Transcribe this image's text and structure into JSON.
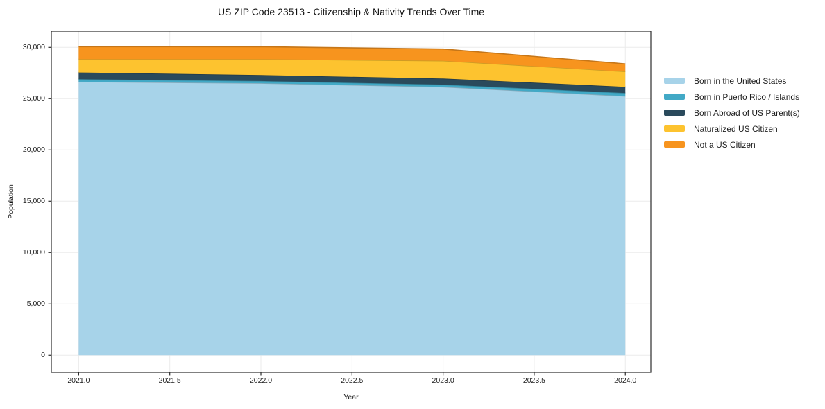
{
  "chart": {
    "title": "US ZIP Code 23513 - Citizenship & Nativity Trends Over Time",
    "xlabel": "Year",
    "ylabel": "Population"
  },
  "style": {
    "background": "#ffffff",
    "grid_color": "#ebebeb",
    "frame_color": "#2b2b2b",
    "tick_color": "#2b2b2b",
    "text_color": "#1c1c1c"
  },
  "chart_data": {
    "type": "area",
    "stacked": true,
    "title": "US ZIP Code 23513 - Citizenship & Nativity Trends Over Time",
    "xlabel": "Year",
    "ylabel": "Population",
    "x": [
      2021,
      2022,
      2023,
      2024
    ],
    "series": [
      {
        "name": "Born in the United States",
        "color": "#a7d3e9",
        "values": [
          26650,
          26500,
          26150,
          25250
        ]
      },
      {
        "name": "Born in Puerto Rico / Islands",
        "color": "#42a9c6",
        "values": [
          250,
          220,
          220,
          300
        ]
      },
      {
        "name": "Born Abroad of US Parent(s)",
        "color": "#2a4a5c",
        "values": [
          650,
          580,
          590,
          600
        ]
      },
      {
        "name": "Naturalized US Citizen",
        "color": "#fdc32f",
        "values": [
          1300,
          1550,
          1730,
          1490
        ]
      },
      {
        "name": "Not a US Citizen",
        "color": "#f7941e",
        "values": [
          1220,
          1210,
          1150,
          750
        ]
      }
    ],
    "stack_totals": [
      30070,
      30060,
      29840,
      28390
    ],
    "x_range": [
      2020.85,
      2024.14
    ],
    "y_range": [
      -1670,
      31575
    ],
    "x_tick_values": [
      2021.0,
      2021.5,
      2022.0,
      2022.5,
      2023.0,
      2023.5,
      2024.0
    ],
    "x_tick_labels": [
      "2021.0",
      "2021.5",
      "2022.0",
      "2022.5",
      "2023.0",
      "2023.5",
      "2024.0"
    ],
    "y_tick_values": [
      0,
      5000,
      10000,
      15000,
      20000,
      25000,
      30000
    ],
    "y_tick_labels": [
      "0",
      "5,000",
      "10,000",
      "15,000",
      "20,000",
      "25,000",
      "30,000"
    ],
    "grid": true,
    "legend_position": "right-outside"
  }
}
